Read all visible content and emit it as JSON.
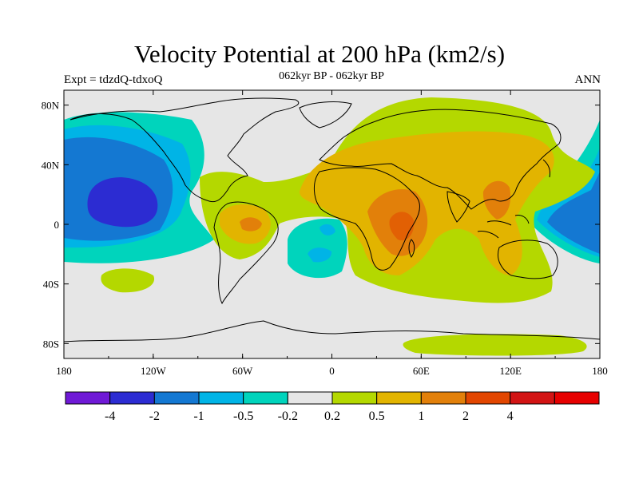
{
  "title": "Velocity Potential at 200 hPa (km2/s)",
  "subtitle": "062kyr BP - 062kyr BP",
  "left_label": "Expt = tdzdQ-tdxoQ",
  "right_label": "ANN",
  "map": {
    "projection": "cylindrical-equidistant",
    "lon_range": [
      -180,
      180
    ],
    "lat_range": [
      -90,
      90
    ],
    "lon_ticks": [
      {
        "value": -180,
        "label": "180"
      },
      {
        "value": -120,
        "label": "120W"
      },
      {
        "value": -60,
        "label": "60W"
      },
      {
        "value": 0,
        "label": "0"
      },
      {
        "value": 60,
        "label": "60E"
      },
      {
        "value": 120,
        "label": "120E"
      },
      {
        "value": 180,
        "label": "180"
      }
    ],
    "lat_ticks": [
      {
        "value": 80,
        "label": "80N"
      },
      {
        "value": 40,
        "label": "40N"
      },
      {
        "value": 0,
        "label": "0"
      },
      {
        "value": -40,
        "label": "40S"
      },
      {
        "value": -80,
        "label": "80S"
      }
    ],
    "background_color": "#e6e6e6"
  },
  "colorbar": {
    "colors": [
      "#6f19d6",
      "#2c2cd2",
      "#1478d2",
      "#00b4e6",
      "#00d4bc",
      "#e6e6e6",
      "#b4d800",
      "#e2b400",
      "#e2800a",
      "#e24600",
      "#d21414",
      "#e60000"
    ],
    "labels": [
      "-4",
      "-2",
      "-1",
      "-0.5",
      "-0.2",
      "0.2",
      "0.5",
      "1",
      "2",
      "4"
    ]
  },
  "chart_data": {
    "type": "contour-map",
    "field": "velocity potential difference at 200 hPa",
    "units": "km2/s",
    "levels": [
      -4,
      -2,
      -1,
      -0.5,
      -0.2,
      0.2,
      0.5,
      1,
      2,
      4
    ],
    "regions": [
      {
        "name": "north-pacific-negative",
        "lon": [
          -180,
          -80
        ],
        "lat": [
          -28,
          70
        ],
        "min_level": -2
      },
      {
        "name": "western-pacific-negative",
        "lon": [
          110,
          180
        ],
        "lat": [
          -25,
          45
        ],
        "min_level": -1
      },
      {
        "name": "south-atlantic-negative",
        "lon": [
          -30,
          10
        ],
        "lat": [
          -35,
          0
        ],
        "min_level": -0.5
      },
      {
        "name": "eurasia-africa-positive",
        "lon": [
          -20,
          130
        ],
        "lat": [
          -50,
          85
        ],
        "max_level": 2
      },
      {
        "name": "south-america-positive",
        "lon": [
          -90,
          -40
        ],
        "lat": [
          -30,
          25
        ],
        "max_level": 1
      },
      {
        "name": "antarctic-positive",
        "lon": [
          30,
          160
        ],
        "lat": [
          -88,
          -78
        ],
        "max_level": 0.5
      },
      {
        "name": "south-pacific-positive",
        "lon": [
          -170,
          -130
        ],
        "lat": [
          -55,
          -30
        ],
        "max_level": 0.5
      }
    ]
  }
}
